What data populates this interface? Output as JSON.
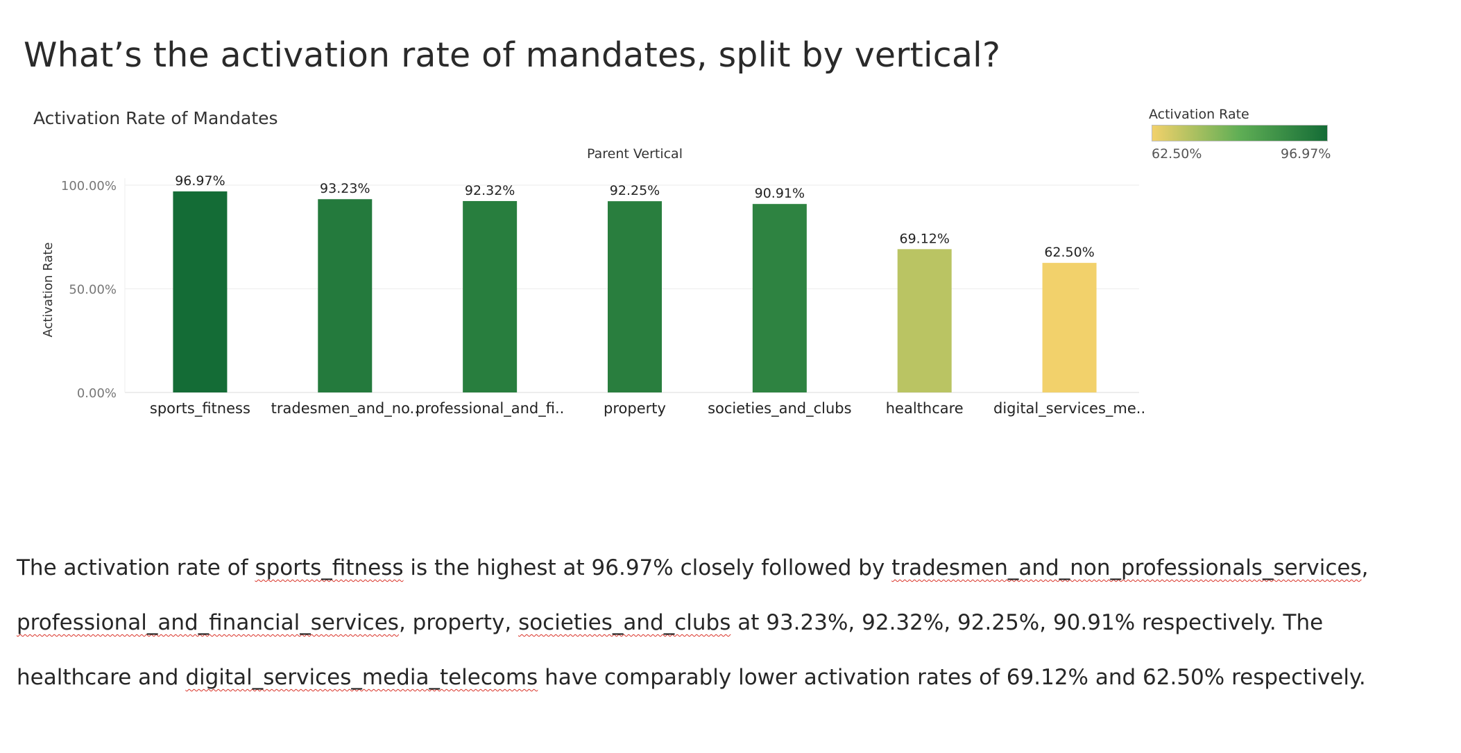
{
  "page": {
    "title": "What’s the activation rate of mandates, split by vertical?"
  },
  "chart_data": {
    "type": "bar",
    "title": "Activation Rate of Mandates",
    "xlabel": "Parent Vertical",
    "ylabel": "Activation Rate",
    "categories": [
      "sports_fitness",
      "tradesmen_and_no..",
      "professional_and_fi..",
      "property",
      "societies_and_clubs",
      "healthcare",
      "digital_services_me.."
    ],
    "values": [
      96.97,
      93.23,
      92.32,
      92.25,
      90.91,
      69.12,
      62.5
    ],
    "value_labels": [
      "96.97%",
      "93.23%",
      "92.32%",
      "92.25%",
      "90.91%",
      "69.12%",
      "62.50%"
    ],
    "ylim": [
      0,
      100
    ],
    "yticks": [
      {
        "value": 0,
        "label": "0.00%"
      },
      {
        "value": 50,
        "label": "50.00%"
      },
      {
        "value": 100,
        "label": "100.00%"
      }
    ],
    "grid": true,
    "legend": {
      "title": "Activation Rate",
      "placement": "top-right",
      "min_label": "62.50%",
      "max_label": "96.97%",
      "min_value": 62.5,
      "max_value": 96.97,
      "color_low": "#f2d16b",
      "color_mid": "#5fae55",
      "color_high": "#146c36"
    }
  },
  "narrative": {
    "line1": [
      {
        "text": "The activation rate of ",
        "spell": false
      },
      {
        "text": "sports_fitness",
        "spell": true
      },
      {
        "text": " is the highest at 96.97% closely followed by ",
        "spell": false
      },
      {
        "text": "tradesmen_and_non_professionals_services",
        "spell": true
      },
      {
        "text": ",",
        "spell": false
      }
    ],
    "line2": [
      {
        "text": "professional_and_financial_services",
        "spell": true
      },
      {
        "text": ", property, ",
        "spell": false
      },
      {
        "text": "societies_and_clubs",
        "spell": true
      },
      {
        "text": " at 93.23%, 92.32%, 92.25%, 90.91% respectively. The",
        "spell": false
      }
    ],
    "line3": [
      {
        "text": "healthcare and ",
        "spell": false
      },
      {
        "text": "digital_services_media_telecoms",
        "spell": true
      },
      {
        "text": " have comparably lower activation rates of 69.12% and 62.50% respectively.",
        "spell": false
      }
    ]
  }
}
